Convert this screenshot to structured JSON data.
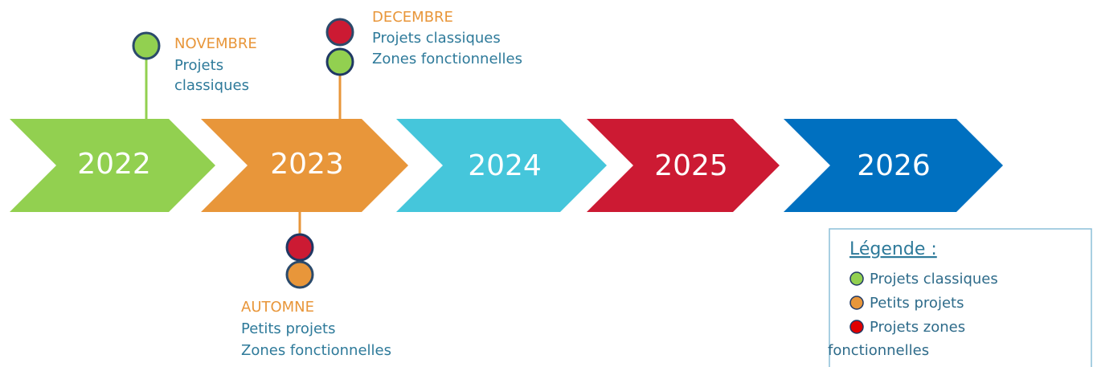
{
  "timeline": {
    "years": [
      "2022",
      "2023",
      "2024",
      "2025",
      "2026"
    ]
  },
  "events": [
    {
      "title": "NOVEMBRE",
      "lines": [
        "Projets",
        "classiques"
      ]
    },
    {
      "title": "DECEMBRE",
      "lines": [
        "Projets classiques",
        "Zones fonctionnelles"
      ]
    },
    {
      "title": "AUTOMNE",
      "lines": [
        "Petits projets",
        "Zones fonctionnelles"
      ]
    }
  ],
  "legend": {
    "title": "Légende :",
    "items": [
      {
        "lines": [
          "Projets classiques"
        ]
      },
      {
        "lines": [
          "Petits projets"
        ]
      },
      {
        "lines": [
          "Projets zones",
          "fonctionnelles"
        ]
      }
    ]
  }
}
